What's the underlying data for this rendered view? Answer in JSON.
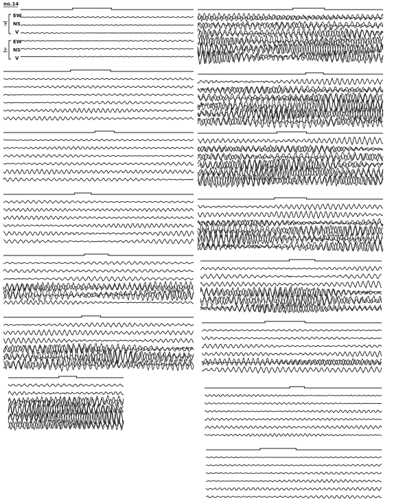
{
  "header": {
    "label": "no.14"
  },
  "legend": {
    "groups": [
      {
        "label": "下",
        "components": [
          "EW",
          "NS",
          "V"
        ]
      },
      {
        "label": "上",
        "components": [
          "EW",
          "NS",
          "V"
        ]
      }
    ]
  }
}
